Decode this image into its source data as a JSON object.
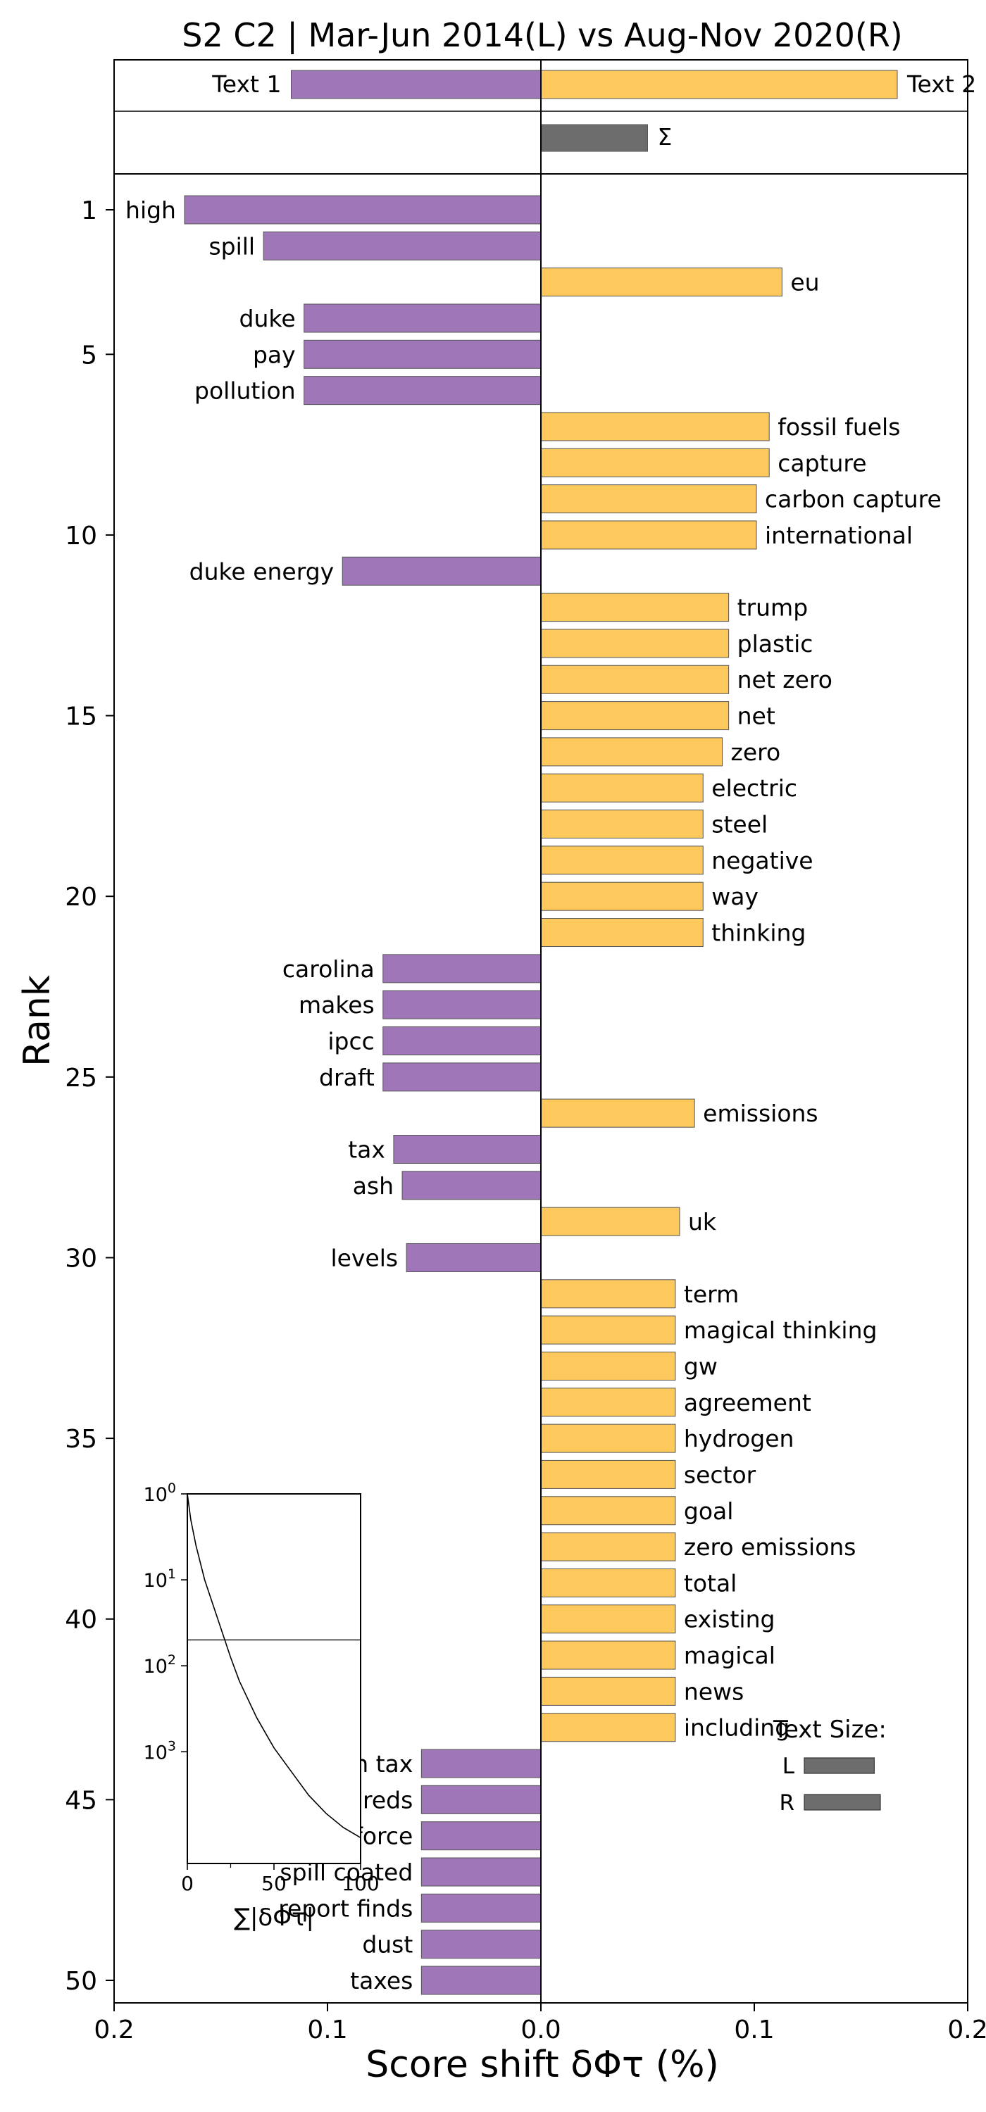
{
  "chart_data": {
    "type": "bar",
    "title": "S2 C2 | Mar-Jun 2014(L) vs Aug-Nov 2020(R)",
    "xlabel": "Score shift δΦτ (%)",
    "ylabel": "Rank",
    "xlim": [
      -0.2,
      0.2
    ],
    "x_tick_values": [
      -0.2,
      -0.1,
      0.0,
      0.1,
      0.2
    ],
    "x_tick_labels": [
      "0.2",
      "0.1",
      "0.0",
      "0.1",
      "0.2"
    ],
    "ylim": [
      1,
      50
    ],
    "y_tick_values": [
      1,
      5,
      10,
      15,
      20,
      25,
      30,
      35,
      40,
      45,
      50
    ],
    "y_tick_labels": [
      "1",
      "5",
      "10",
      "15",
      "20",
      "25",
      "30",
      "35",
      "40",
      "45",
      "50"
    ],
    "colors": {
      "left": "#9f77b8",
      "right": "#fec95c",
      "sum": "#6d6d6d",
      "edge": "#555555"
    },
    "summary_bars": [
      {
        "label": "Text 1",
        "value": -0.117
      },
      {
        "label": "Text 2",
        "value": 0.167
      }
    ],
    "sum_bar": {
      "label": "Σ",
      "value": 0.05
    },
    "bars": [
      {
        "rank": 1,
        "label": "high",
        "value": -0.167
      },
      {
        "rank": 2,
        "label": "spill",
        "value": -0.13
      },
      {
        "rank": 3,
        "label": "eu",
        "value": 0.113
      },
      {
        "rank": 4,
        "label": "duke",
        "value": -0.111
      },
      {
        "rank": 5,
        "label": "pay",
        "value": -0.111
      },
      {
        "rank": 6,
        "label": "pollution",
        "value": -0.111
      },
      {
        "rank": 7,
        "label": "fossil fuels",
        "value": 0.107
      },
      {
        "rank": 8,
        "label": "capture",
        "value": 0.107
      },
      {
        "rank": 9,
        "label": "carbon capture",
        "value": 0.101
      },
      {
        "rank": 10,
        "label": "international",
        "value": 0.101
      },
      {
        "rank": 11,
        "label": "duke energy",
        "value": -0.093
      },
      {
        "rank": 12,
        "label": "trump",
        "value": 0.088
      },
      {
        "rank": 13,
        "label": "plastic",
        "value": 0.088
      },
      {
        "rank": 14,
        "label": "net zero",
        "value": 0.088
      },
      {
        "rank": 15,
        "label": "net",
        "value": 0.088
      },
      {
        "rank": 16,
        "label": "zero",
        "value": 0.085
      },
      {
        "rank": 17,
        "label": "electric",
        "value": 0.076
      },
      {
        "rank": 18,
        "label": "steel",
        "value": 0.076
      },
      {
        "rank": 19,
        "label": "negative",
        "value": 0.076
      },
      {
        "rank": 20,
        "label": "way",
        "value": 0.076
      },
      {
        "rank": 21,
        "label": "thinking",
        "value": 0.076
      },
      {
        "rank": 22,
        "label": "carolina",
        "value": -0.074
      },
      {
        "rank": 23,
        "label": "makes",
        "value": -0.074
      },
      {
        "rank": 24,
        "label": "ipcc",
        "value": -0.074
      },
      {
        "rank": 25,
        "label": "draft",
        "value": -0.074
      },
      {
        "rank": 26,
        "label": "emissions",
        "value": 0.072
      },
      {
        "rank": 27,
        "label": "tax",
        "value": -0.069
      },
      {
        "rank": 28,
        "label": "ash",
        "value": -0.065
      },
      {
        "rank": 29,
        "label": "uk",
        "value": 0.065
      },
      {
        "rank": 30,
        "label": "levels",
        "value": -0.063
      },
      {
        "rank": 31,
        "label": "term",
        "value": 0.063
      },
      {
        "rank": 32,
        "label": "magical thinking",
        "value": 0.063
      },
      {
        "rank": 33,
        "label": "gw",
        "value": 0.063
      },
      {
        "rank": 34,
        "label": "agreement",
        "value": 0.063
      },
      {
        "rank": 35,
        "label": "hydrogen",
        "value": 0.063
      },
      {
        "rank": 36,
        "label": "sector",
        "value": 0.063
      },
      {
        "rank": 37,
        "label": "goal",
        "value": 0.063
      },
      {
        "rank": 38,
        "label": "zero emissions",
        "value": 0.063
      },
      {
        "rank": 39,
        "label": "total",
        "value": 0.063
      },
      {
        "rank": 40,
        "label": "existing",
        "value": 0.063
      },
      {
        "rank": 41,
        "label": "magical",
        "value": 0.063
      },
      {
        "rank": 42,
        "label": "news",
        "value": 0.063
      },
      {
        "rank": 43,
        "label": "including",
        "value": 0.063
      },
      {
        "rank": 44,
        "label": "carbon tax",
        "value": -0.056
      },
      {
        "rank": 45,
        "label": "hundreds",
        "value": -0.056
      },
      {
        "rank": 46,
        "label": "force",
        "value": -0.056
      },
      {
        "rank": 47,
        "label": "spill coated",
        "value": -0.056
      },
      {
        "rank": 48,
        "label": "report finds",
        "value": -0.056
      },
      {
        "rank": 49,
        "label": "dust",
        "value": -0.056
      },
      {
        "rank": 50,
        "label": "taxes",
        "value": -0.056
      }
    ],
    "text_size_legend": {
      "title": "Text Size:",
      "items": [
        {
          "label": "L",
          "relative_size": 0.92
        },
        {
          "label": "R",
          "relative_size": 1.0
        }
      ]
    },
    "inset": {
      "type": "line",
      "xlabel": "∑|δΦτ|",
      "xlim": [
        0,
        100
      ],
      "x_tick_labels": [
        "0",
        "50",
        "100"
      ],
      "y_scale": "log",
      "y_inverted": true,
      "y_tick_labels": [
        "10",
        "10",
        "10",
        "10"
      ],
      "y_tick_exponents": [
        "0",
        "1",
        "2",
        "3"
      ],
      "reference_rank": 50,
      "curve": [
        {
          "x": 0,
          "y": 1
        },
        {
          "x": 2,
          "y": 2
        },
        {
          "x": 5,
          "y": 4
        },
        {
          "x": 10,
          "y": 10
        },
        {
          "x": 15,
          "y": 20
        },
        {
          "x": 20,
          "y": 40
        },
        {
          "x": 25,
          "y": 80
        },
        {
          "x": 30,
          "y": 150
        },
        {
          "x": 40,
          "y": 400
        },
        {
          "x": 50,
          "y": 900
        },
        {
          "x": 60,
          "y": 1700
        },
        {
          "x": 70,
          "y": 3200
        },
        {
          "x": 80,
          "y": 5200
        },
        {
          "x": 90,
          "y": 7600
        },
        {
          "x": 100,
          "y": 10000
        }
      ]
    }
  }
}
